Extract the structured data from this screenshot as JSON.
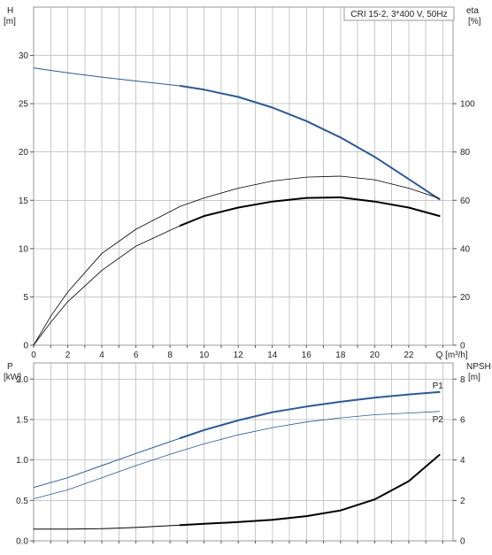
{
  "title": "CRI 15-2, 3*400 V, 50Hz",
  "colors": {
    "blue": "#2c5a92",
    "black": "#000000",
    "grid": "#c8c8c8",
    "frame": "#9a9a9a"
  },
  "chart_data": [
    {
      "type": "line",
      "name": "upper-chart",
      "xlabel": "Q [m³/h]",
      "ylabel_left": [
        "H",
        "[m]"
      ],
      "ylabel_right": [
        "eta",
        "[%]"
      ],
      "x_ticks": [
        "0",
        "2",
        "4",
        "6",
        "8",
        "10",
        "12",
        "14",
        "16",
        "18",
        "20",
        "22"
      ],
      "x_end_label": "Q [m³/h]",
      "xlim": [
        0,
        24.6
      ],
      "y_left_ticks": [
        "0",
        "5",
        "10",
        "15",
        "20",
        "25",
        "30"
      ],
      "ylim_left": [
        0,
        35
      ],
      "y_right_ticks": [
        "0",
        "20",
        "40",
        "60",
        "80",
        "100"
      ],
      "ylim_right": [
        0,
        140
      ],
      "grid": true,
      "series": [
        {
          "name": "",
          "axis": "left",
          "color": "blue",
          "width": 1,
          "x": [
            0,
            2,
            4,
            6,
            8.6
          ],
          "y": [
            28.7,
            28.2,
            27.75,
            27.35,
            26.85
          ]
        },
        {
          "name": "",
          "axis": "left",
          "color": "blue",
          "width": 2,
          "x": [
            8.6,
            10,
            12,
            14,
            16,
            18,
            20,
            22,
            23.8
          ],
          "y": [
            26.85,
            26.45,
            25.7,
            24.6,
            23.2,
            21.5,
            19.5,
            17.2,
            15.1
          ]
        },
        {
          "name": "",
          "axis": "right",
          "color": "black",
          "width": 0.8,
          "x": [
            0,
            1,
            2,
            4,
            6,
            8.6,
            10,
            12,
            14,
            16,
            18,
            20,
            22,
            23.8
          ],
          "y": [
            0,
            12,
            22,
            38,
            48,
            57.5,
            61,
            65,
            68,
            69.6,
            70,
            68.5,
            65,
            60.8
          ]
        },
        {
          "name": "",
          "axis": "right",
          "color": "black",
          "width": 0.8,
          "x": [
            0,
            1,
            2,
            4,
            6,
            8.6
          ],
          "y": [
            0,
            9.5,
            18,
            31,
            41,
            49.5
          ]
        },
        {
          "name": "",
          "axis": "right",
          "color": "black",
          "width": 2,
          "x": [
            8.6,
            10,
            12,
            14,
            16,
            18,
            20,
            22,
            23.8
          ],
          "y": [
            49.5,
            53.5,
            57,
            59.5,
            61,
            61.2,
            59.5,
            57,
            53.5
          ]
        }
      ]
    },
    {
      "type": "line",
      "name": "lower-chart",
      "ylabel_left": [
        "P",
        "[kW]"
      ],
      "ylabel_right": [
        "NPSH",
        "[m]"
      ],
      "xlim": [
        0,
        24.6
      ],
      "y_left_ticks": [
        "0.0",
        "0.5",
        "1.0",
        "1.5",
        "2.0"
      ],
      "ylim_left": [
        0,
        2.2
      ],
      "y_right_ticks": [
        "0",
        "2",
        "4",
        "6",
        "8"
      ],
      "ylim_right": [
        0,
        8.8
      ],
      "grid": true,
      "series": [
        {
          "name": "P1",
          "axis": "left",
          "color": "blue",
          "width": 1,
          "x": [
            0,
            2,
            4,
            6,
            8.6
          ],
          "y": [
            0.66,
            0.78,
            0.93,
            1.08,
            1.27
          ]
        },
        {
          "name": "P1",
          "axis": "left",
          "color": "blue",
          "width": 2,
          "x": [
            8.6,
            10,
            12,
            14,
            16,
            18,
            20,
            22,
            23.8
          ],
          "y": [
            1.27,
            1.37,
            1.49,
            1.59,
            1.66,
            1.72,
            1.77,
            1.81,
            1.84
          ],
          "label": "P1"
        },
        {
          "name": "P2",
          "axis": "left",
          "color": "blue",
          "width": 0.8,
          "x": [
            0,
            2,
            4,
            6,
            8,
            10,
            12,
            14,
            16,
            18,
            20,
            22,
            23.8
          ],
          "y": [
            0.52,
            0.63,
            0.78,
            0.93,
            1.07,
            1.2,
            1.31,
            1.4,
            1.47,
            1.52,
            1.56,
            1.58,
            1.6
          ],
          "label": "P2"
        },
        {
          "name": "",
          "axis": "right",
          "color": "black",
          "width": 1,
          "x": [
            0,
            2,
            4,
            6,
            8.6
          ],
          "y": [
            0.58,
            0.58,
            0.6,
            0.66,
            0.78
          ]
        },
        {
          "name": "",
          "axis": "right",
          "color": "black",
          "width": 2,
          "x": [
            8.6,
            10,
            12,
            14,
            16,
            18,
            20,
            22,
            23.8
          ],
          "y": [
            0.78,
            0.84,
            0.93,
            1.04,
            1.22,
            1.5,
            2.05,
            2.95,
            4.25
          ]
        }
      ]
    }
  ]
}
